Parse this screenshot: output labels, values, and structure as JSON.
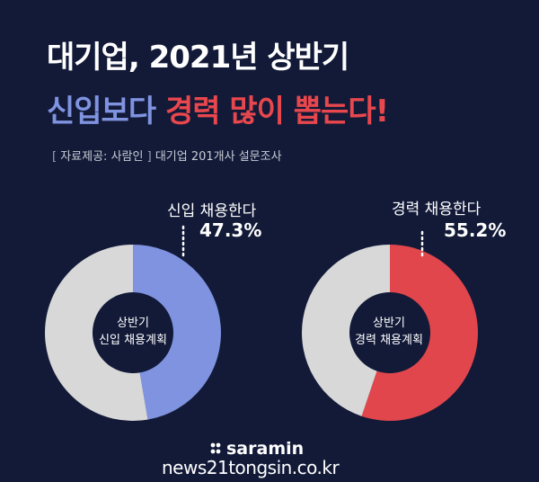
{
  "header": {
    "title_line1": "대기업, 2021년 상반기",
    "title_line2_part1": "신입보다",
    "title_line2_part2": "경력 많이 뽑는다!",
    "source_open": "[",
    "source_label": "자료제공: 사람인",
    "source_close": "]",
    "source_desc": "대기업 201개사 설문조사"
  },
  "chart_data": [
    {
      "type": "pie",
      "center_label_line1": "상반기",
      "center_label_line2": "신입 채용계획",
      "slices": [
        {
          "label": "신입 채용한다",
          "value": 47.3,
          "value_text": "47.3%",
          "color": "#7f93e0"
        },
        {
          "label": "",
          "value": 52.7,
          "color": "#d8d8d8"
        }
      ]
    },
    {
      "type": "pie",
      "center_label_line1": "상반기",
      "center_label_line2": "경력 채용계획",
      "slices": [
        {
          "label": "경력 채용한다",
          "value": 55.2,
          "value_text": "55.2%",
          "color": "#e0464b"
        },
        {
          "label": "",
          "value": 44.8,
          "color": "#d8d8d8"
        }
      ]
    }
  ],
  "footer": {
    "brand": "saramin",
    "watermark": "news21tongsin.co.kr"
  }
}
